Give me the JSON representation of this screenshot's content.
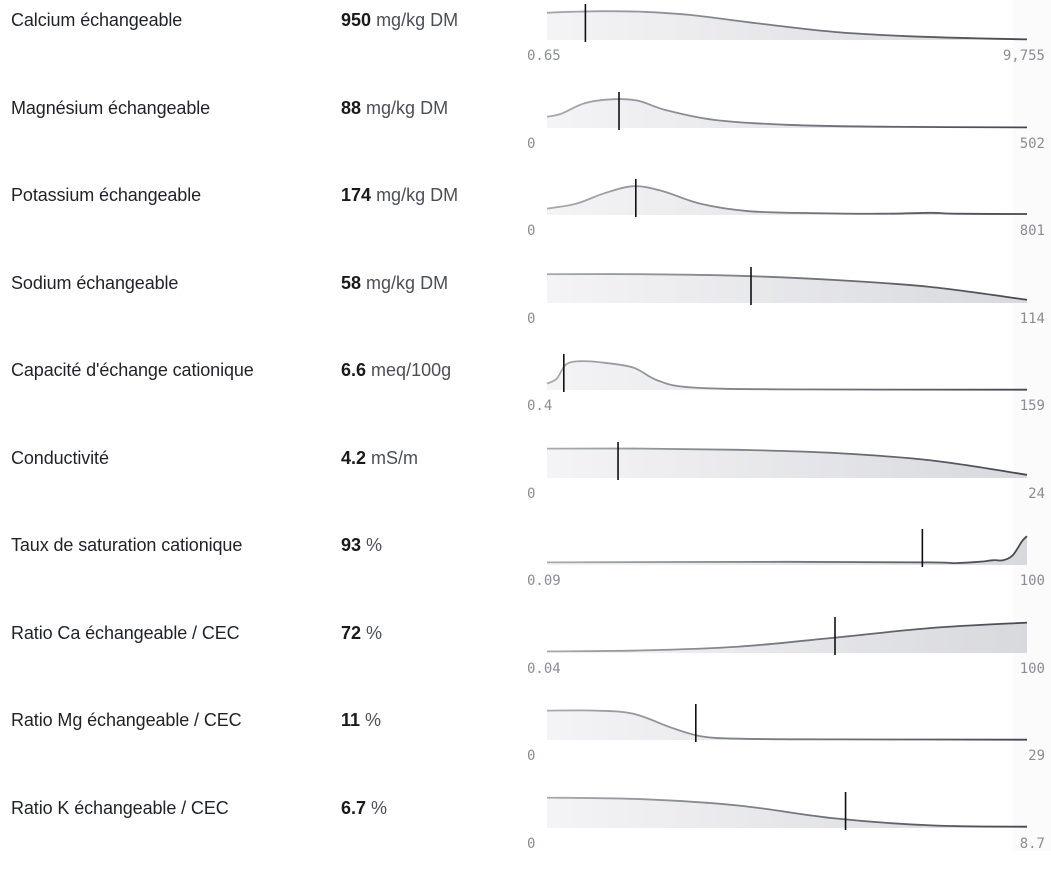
{
  "rows": [
    {
      "label": "Calcium échangeable",
      "value": "950",
      "unit": "mg/kg DM",
      "min": "0.65",
      "max": "9,755",
      "marker": 0.08,
      "curve": [
        [
          0,
          0.85
        ],
        [
          0.05,
          0.88
        ],
        [
          0.12,
          0.9
        ],
        [
          0.2,
          0.88
        ],
        [
          0.3,
          0.78
        ],
        [
          0.45,
          0.5
        ],
        [
          0.6,
          0.25
        ],
        [
          0.75,
          0.12
        ],
        [
          0.9,
          0.05
        ],
        [
          1,
          0.02
        ]
      ]
    },
    {
      "label": "Magnésium échangeable",
      "value": "88",
      "unit": "mg/kg DM",
      "min": "0",
      "max": "502",
      "marker": 0.15,
      "curve": [
        [
          0,
          0.35
        ],
        [
          0.03,
          0.45
        ],
        [
          0.08,
          0.78
        ],
        [
          0.14,
          0.9
        ],
        [
          0.19,
          0.85
        ],
        [
          0.25,
          0.55
        ],
        [
          0.35,
          0.25
        ],
        [
          0.5,
          0.1
        ],
        [
          0.7,
          0.04
        ],
        [
          1,
          0.02
        ]
      ]
    },
    {
      "label": "Potassium échangeable",
      "value": "174",
      "unit": "mg/kg DM",
      "min": "0",
      "max": "801",
      "marker": 0.185,
      "curve": [
        [
          0,
          0.2
        ],
        [
          0.06,
          0.35
        ],
        [
          0.12,
          0.68
        ],
        [
          0.18,
          0.9
        ],
        [
          0.24,
          0.75
        ],
        [
          0.32,
          0.35
        ],
        [
          0.42,
          0.12
        ],
        [
          0.55,
          0.06
        ],
        [
          0.7,
          0.04
        ],
        [
          0.8,
          0.07
        ],
        [
          0.85,
          0.04
        ],
        [
          1,
          0.03
        ]
      ]
    },
    {
      "label": "Sodium échangeable",
      "value": "58",
      "unit": "mg/kg DM",
      "min": "0",
      "max": "114",
      "marker": 0.425,
      "curve": [
        [
          0,
          0.9
        ],
        [
          0.2,
          0.9
        ],
        [
          0.4,
          0.85
        ],
        [
          0.6,
          0.72
        ],
        [
          0.8,
          0.5
        ],
        [
          1,
          0.1
        ]
      ]
    },
    {
      "label": "Capacité d'échange cationique",
      "value": "6.6",
      "unit": "meq/100g",
      "min": "0.4",
      "max": "159",
      "marker": 0.035,
      "curve": [
        [
          0,
          0.2
        ],
        [
          0.02,
          0.35
        ],
        [
          0.04,
          0.8
        ],
        [
          0.07,
          0.9
        ],
        [
          0.12,
          0.85
        ],
        [
          0.18,
          0.7
        ],
        [
          0.23,
          0.3
        ],
        [
          0.3,
          0.08
        ],
        [
          0.5,
          0.02
        ],
        [
          1,
          0.01
        ]
      ]
    },
    {
      "label": "Conductivité",
      "value": "4.2",
      "unit": "mS/m",
      "min": "0",
      "max": "24",
      "marker": 0.148,
      "curve": [
        [
          0,
          0.92
        ],
        [
          0.2,
          0.92
        ],
        [
          0.4,
          0.88
        ],
        [
          0.6,
          0.78
        ],
        [
          0.8,
          0.55
        ],
        [
          1,
          0.1
        ]
      ]
    },
    {
      "label": "Taux de saturation cationique",
      "value": "93",
      "unit": "%",
      "min": "0.09",
      "max": "100",
      "marker": 0.782,
      "curve": [
        [
          0,
          0.08
        ],
        [
          0.5,
          0.1
        ],
        [
          0.8,
          0.08
        ],
        [
          0.85,
          0.06
        ],
        [
          0.9,
          0.1
        ],
        [
          0.93,
          0.15
        ],
        [
          0.95,
          0.15
        ],
        [
          0.97,
          0.3
        ],
        [
          0.99,
          0.75
        ],
        [
          1,
          0.9
        ]
      ]
    },
    {
      "label": "Ratio Ca échangeable / CEC",
      "value": "72",
      "unit": "%",
      "min": "0.04",
      "max": "100",
      "marker": 0.6,
      "curve": [
        [
          0,
          0.05
        ],
        [
          0.2,
          0.08
        ],
        [
          0.4,
          0.2
        ],
        [
          0.6,
          0.48
        ],
        [
          0.8,
          0.78
        ],
        [
          1,
          0.95
        ]
      ]
    },
    {
      "label": "Ratio Mg échangeable / CEC",
      "value": "11",
      "unit": "%",
      "min": "0",
      "max": "29",
      "marker": 0.31,
      "curve": [
        [
          0,
          0.92
        ],
        [
          0.1,
          0.92
        ],
        [
          0.18,
          0.82
        ],
        [
          0.26,
          0.38
        ],
        [
          0.32,
          0.12
        ],
        [
          0.4,
          0.04
        ],
        [
          0.6,
          0.02
        ],
        [
          1,
          0.01
        ]
      ]
    },
    {
      "label": "Ratio K échangeable / CEC",
      "value": "6.7",
      "unit": "%",
      "min": "0",
      "max": "8.7",
      "marker": 0.622,
      "curve": [
        [
          0,
          0.95
        ],
        [
          0.2,
          0.9
        ],
        [
          0.4,
          0.7
        ],
        [
          0.6,
          0.3
        ],
        [
          0.8,
          0.08
        ],
        [
          1,
          0.04
        ]
      ]
    }
  ],
  "chart_data": {
    "type": "area",
    "series": [
      {
        "name": "Calcium échangeable",
        "value": 950,
        "unit": "mg/kg DM",
        "range": [
          0.65,
          9755
        ]
      },
      {
        "name": "Magnésium échangeable",
        "value": 88,
        "unit": "mg/kg DM",
        "range": [
          0,
          502
        ]
      },
      {
        "name": "Potassium échangeable",
        "value": 174,
        "unit": "mg/kg DM",
        "range": [
          0,
          801
        ]
      },
      {
        "name": "Sodium échangeable",
        "value": 58,
        "unit": "mg/kg DM",
        "range": [
          0,
          114
        ]
      },
      {
        "name": "Capacité d'échange cationique",
        "value": 6.6,
        "unit": "meq/100g",
        "range": [
          0.4,
          159
        ]
      },
      {
        "name": "Conductivité",
        "value": 4.2,
        "unit": "mS/m",
        "range": [
          0,
          24
        ]
      },
      {
        "name": "Taux de saturation cationique",
        "value": 93,
        "unit": "%",
        "range": [
          0.09,
          100
        ]
      },
      {
        "name": "Ratio Ca échangeable / CEC",
        "value": 72,
        "unit": "%",
        "range": [
          0.04,
          100
        ]
      },
      {
        "name": "Ratio Mg échangeable / CEC",
        "value": 11,
        "unit": "%",
        "range": [
          0,
          29
        ]
      },
      {
        "name": "Ratio K échangeable / CEC",
        "value": 6.7,
        "unit": "%",
        "range": [
          0,
          8.7
        ]
      }
    ]
  },
  "colors": {
    "fill_start": "#f4f4f6",
    "fill_end": "#d8d9dd",
    "stroke_light": "#a7aab0",
    "stroke_dark": "#444851",
    "marker": "#111111"
  }
}
